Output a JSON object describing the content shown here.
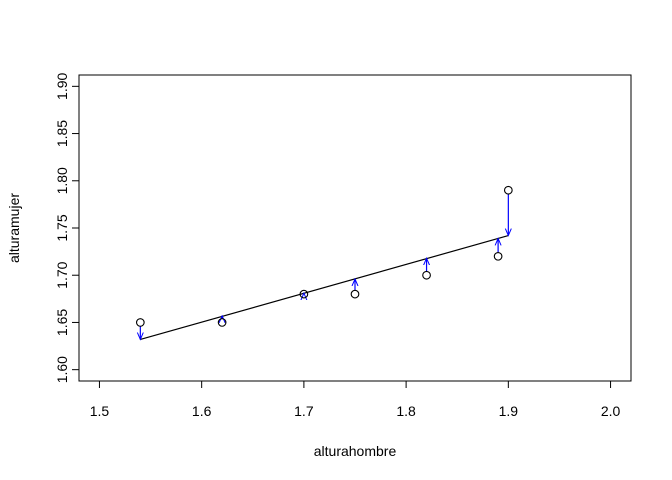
{
  "chart_data": {
    "type": "scatter",
    "title": "",
    "xlabel": "alturahombre",
    "ylabel": "alturamujer",
    "xlim": [
      1.48,
      2.02
    ],
    "ylim": [
      1.588,
      1.912
    ],
    "x_ticks": [
      1.5,
      1.6,
      1.7,
      1.8,
      1.9,
      2.0
    ],
    "x_tick_labels": [
      "1.5",
      "1.6",
      "1.7",
      "1.8",
      "1.9",
      "2.0"
    ],
    "y_ticks": [
      1.6,
      1.65,
      1.7,
      1.75,
      1.8,
      1.85,
      1.9
    ],
    "y_tick_labels": [
      "1.60",
      "1.65",
      "1.70",
      "1.75",
      "1.80",
      "1.85",
      "1.90"
    ],
    "grid": false,
    "points": [
      {
        "x": 1.54,
        "y": 1.65
      },
      {
        "x": 1.62,
        "y": 1.65
      },
      {
        "x": 1.7,
        "y": 1.68
      },
      {
        "x": 1.75,
        "y": 1.68
      },
      {
        "x": 1.82,
        "y": 1.7
      },
      {
        "x": 1.89,
        "y": 1.72
      },
      {
        "x": 1.9,
        "y": 1.79
      }
    ],
    "regression_line": {
      "x": [
        1.54,
        1.9
      ],
      "y": [
        1.632,
        1.742
      ],
      "color": "#000000"
    },
    "residual_arrows": {
      "color": "#0000ff",
      "segments": [
        {
          "x": 1.54,
          "y_from": 1.65,
          "y_to": 1.632
        },
        {
          "x": 1.62,
          "y_from": 1.65,
          "y_to": 1.657
        },
        {
          "x": 1.7,
          "y_from": 1.68,
          "y_to": 1.681
        },
        {
          "x": 1.75,
          "y_from": 1.68,
          "y_to": 1.696
        },
        {
          "x": 1.82,
          "y_from": 1.7,
          "y_to": 1.718
        },
        {
          "x": 1.89,
          "y_from": 1.72,
          "y_to": 1.739
        },
        {
          "x": 1.9,
          "y_from": 1.79,
          "y_to": 1.742
        }
      ]
    }
  }
}
